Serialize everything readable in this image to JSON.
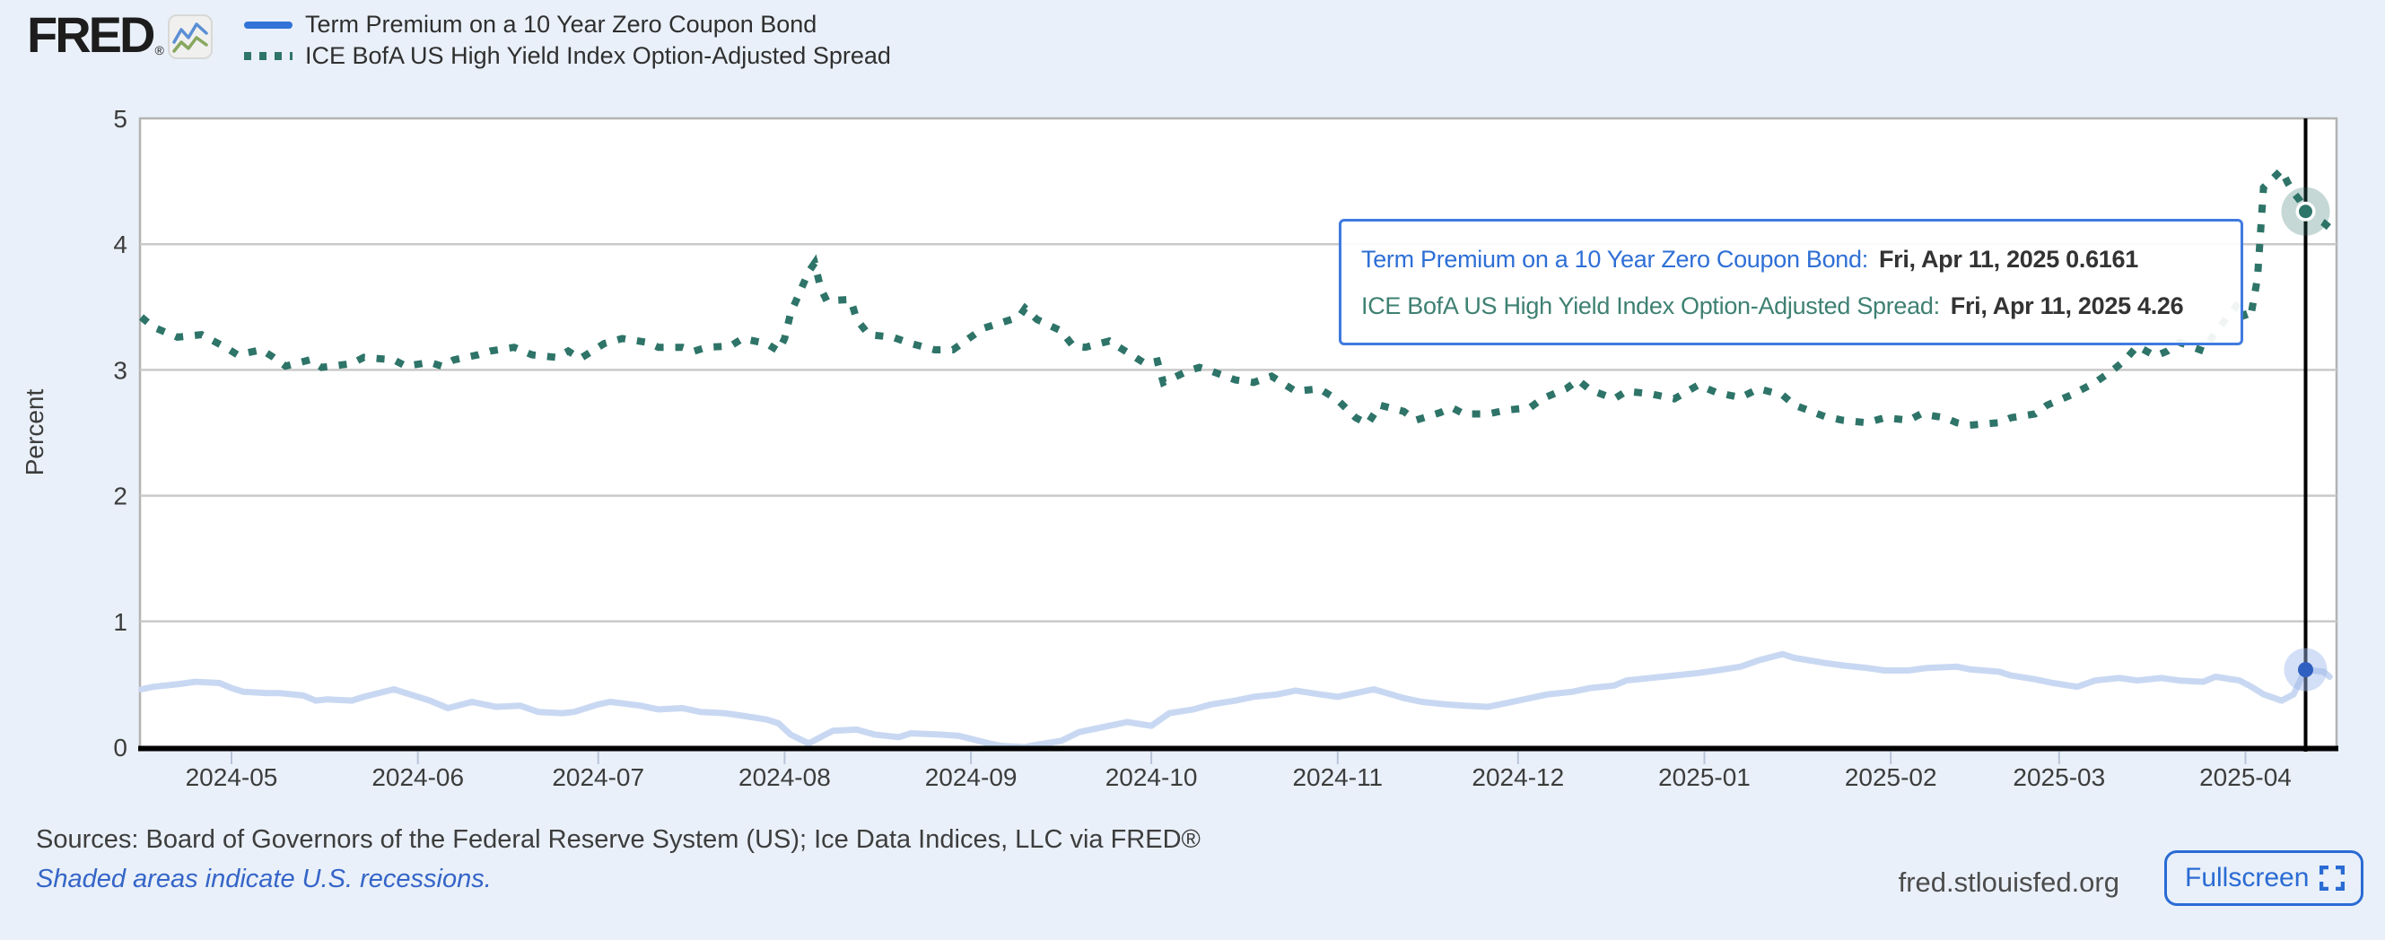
{
  "page": {
    "background": "#e9f0f9"
  },
  "header": {
    "logo_text": "FRED",
    "logo_reg": "®",
    "legend": [
      {
        "label": "Term Premium on a 10 Year Zero Coupon Bond",
        "color": "#3273d8",
        "style": "solid"
      },
      {
        "label": "ICE BofA US High Yield Index Option-Adjusted Spread",
        "color": "#2e7468",
        "style": "dotted"
      }
    ]
  },
  "tooltip": {
    "rows": [
      {
        "label": "Term Premium on a 10 Year Zero Coupon Bond:",
        "value": "Fri, Apr 11, 2025 0.6161"
      },
      {
        "label": "ICE BofA US High Yield Index Option-Adjusted Spread:",
        "value": "Fri, Apr 11, 2025 4.26"
      }
    ]
  },
  "footer": {
    "sources": "Sources: Board of Governors of the Federal Reserve System (US); Ice Data Indices, LLC via FRED®",
    "recession_note": "Shaded areas indicate U.S. recessions.",
    "watermark": "fred.stlouisfed.org",
    "fullscreen_label": "Fullscreen"
  },
  "colors": {
    "accent_blue": "#3273d8",
    "series_blue_faded": "#c9d8f2",
    "marker_blue": "#2f5fc0",
    "marker_blue_halo": "#9db9ea",
    "series_green": "#2e7468",
    "grid": "#c9c9c9",
    "plot_border": "#b3b3b3",
    "axis_black": "#000000",
    "tick": "#b8c4d9",
    "text_dark": "#3c3c3c"
  },
  "chart_data": {
    "type": "line",
    "title": "",
    "xlabel": "",
    "ylabel": "Percent",
    "ylim": [
      0,
      5
    ],
    "y_ticks": [
      0,
      1,
      2,
      3,
      4,
      5
    ],
    "grid": "horizontal",
    "legend_position": "top-left",
    "x_ticks": [
      {
        "label": "2024-05",
        "date": "2024-05-01"
      },
      {
        "label": "2024-06",
        "date": "2024-06-01"
      },
      {
        "label": "2024-07",
        "date": "2024-07-01"
      },
      {
        "label": "2024-08",
        "date": "2024-08-01"
      },
      {
        "label": "2024-09",
        "date": "2024-09-01"
      },
      {
        "label": "2024-10",
        "date": "2024-10-01"
      },
      {
        "label": "2024-11",
        "date": "2024-11-01"
      },
      {
        "label": "2024-12",
        "date": "2024-12-01"
      },
      {
        "label": "2025-01",
        "date": "2025-01-01"
      },
      {
        "label": "2025-02",
        "date": "2025-02-01"
      },
      {
        "label": "2025-03",
        "date": "2025-03-01"
      },
      {
        "label": "2025-04",
        "date": "2025-04-01"
      }
    ],
    "crosshair": {
      "date": "2025-04-11"
    },
    "series": [
      {
        "name": "Term Premium on a 10 Year Zero Coupon Bond",
        "style": "solid",
        "color": "#c9d8f2",
        "highlight": {
          "date": "2025-04-11",
          "value": 0.6161
        },
        "points": [
          [
            "2024-04-16",
            0.46
          ],
          [
            "2024-04-18",
            0.48
          ],
          [
            "2024-04-22",
            0.5
          ],
          [
            "2024-04-25",
            0.52
          ],
          [
            "2024-04-29",
            0.51
          ],
          [
            "2024-05-01",
            0.47
          ],
          [
            "2024-05-03",
            0.44
          ],
          [
            "2024-05-07",
            0.43
          ],
          [
            "2024-05-09",
            0.43
          ],
          [
            "2024-05-13",
            0.41
          ],
          [
            "2024-05-15",
            0.37
          ],
          [
            "2024-05-17",
            0.38
          ],
          [
            "2024-05-21",
            0.37
          ],
          [
            "2024-05-23",
            0.4
          ],
          [
            "2024-05-28",
            0.46
          ],
          [
            "2024-05-30",
            0.43
          ],
          [
            "2024-06-03",
            0.37
          ],
          [
            "2024-06-06",
            0.31
          ],
          [
            "2024-06-10",
            0.36
          ],
          [
            "2024-06-12",
            0.34
          ],
          [
            "2024-06-14",
            0.32
          ],
          [
            "2024-06-18",
            0.33
          ],
          [
            "2024-06-21",
            0.28
          ],
          [
            "2024-06-25",
            0.27
          ],
          [
            "2024-06-27",
            0.28
          ],
          [
            "2024-07-01",
            0.34
          ],
          [
            "2024-07-03",
            0.36
          ],
          [
            "2024-07-08",
            0.33
          ],
          [
            "2024-07-11",
            0.3
          ],
          [
            "2024-07-15",
            0.31
          ],
          [
            "2024-07-18",
            0.28
          ],
          [
            "2024-07-22",
            0.27
          ],
          [
            "2024-07-25",
            0.25
          ],
          [
            "2024-07-29",
            0.22
          ],
          [
            "2024-07-31",
            0.19
          ],
          [
            "2024-08-02",
            0.1
          ],
          [
            "2024-08-05",
            0.03
          ],
          [
            "2024-08-07",
            0.08
          ],
          [
            "2024-08-09",
            0.13
          ],
          [
            "2024-08-13",
            0.14
          ],
          [
            "2024-08-16",
            0.1
          ],
          [
            "2024-08-20",
            0.08
          ],
          [
            "2024-08-22",
            0.11
          ],
          [
            "2024-08-27",
            0.1
          ],
          [
            "2024-08-30",
            0.09
          ],
          [
            "2024-09-04",
            0.03
          ],
          [
            "2024-09-06",
            0.01
          ],
          [
            "2024-09-10",
            0.0
          ],
          [
            "2024-09-12",
            0.02
          ],
          [
            "2024-09-16",
            0.05
          ],
          [
            "2024-09-19",
            0.12
          ],
          [
            "2024-09-24",
            0.17
          ],
          [
            "2024-09-27",
            0.2
          ],
          [
            "2024-10-01",
            0.17
          ],
          [
            "2024-10-04",
            0.27
          ],
          [
            "2024-10-08",
            0.3
          ],
          [
            "2024-10-11",
            0.34
          ],
          [
            "2024-10-15",
            0.37
          ],
          [
            "2024-10-18",
            0.4
          ],
          [
            "2024-10-22",
            0.42
          ],
          [
            "2024-10-25",
            0.45
          ],
          [
            "2024-10-29",
            0.42
          ],
          [
            "2024-11-01",
            0.4
          ],
          [
            "2024-11-05",
            0.44
          ],
          [
            "2024-11-07",
            0.46
          ],
          [
            "2024-11-12",
            0.39
          ],
          [
            "2024-11-15",
            0.36
          ],
          [
            "2024-11-19",
            0.34
          ],
          [
            "2024-11-22",
            0.33
          ],
          [
            "2024-11-26",
            0.32
          ],
          [
            "2024-11-29",
            0.35
          ],
          [
            "2024-12-03",
            0.39
          ],
          [
            "2024-12-06",
            0.42
          ],
          [
            "2024-12-10",
            0.44
          ],
          [
            "2024-12-13",
            0.47
          ],
          [
            "2024-12-17",
            0.49
          ],
          [
            "2024-12-19",
            0.53
          ],
          [
            "2024-12-23",
            0.55
          ],
          [
            "2024-12-27",
            0.57
          ],
          [
            "2024-12-31",
            0.59
          ],
          [
            "2025-01-03",
            0.61
          ],
          [
            "2025-01-07",
            0.64
          ],
          [
            "2025-01-10",
            0.69
          ],
          [
            "2025-01-14",
            0.74
          ],
          [
            "2025-01-16",
            0.71
          ],
          [
            "2025-01-21",
            0.67
          ],
          [
            "2025-01-24",
            0.65
          ],
          [
            "2025-01-28",
            0.63
          ],
          [
            "2025-01-31",
            0.61
          ],
          [
            "2025-02-04",
            0.61
          ],
          [
            "2025-02-07",
            0.63
          ],
          [
            "2025-02-12",
            0.64
          ],
          [
            "2025-02-14",
            0.62
          ],
          [
            "2025-02-19",
            0.6
          ],
          [
            "2025-02-21",
            0.57
          ],
          [
            "2025-02-25",
            0.54
          ],
          [
            "2025-02-28",
            0.51
          ],
          [
            "2025-03-04",
            0.48
          ],
          [
            "2025-03-07",
            0.53
          ],
          [
            "2025-03-11",
            0.55
          ],
          [
            "2025-03-14",
            0.53
          ],
          [
            "2025-03-18",
            0.55
          ],
          [
            "2025-03-21",
            0.53
          ],
          [
            "2025-03-25",
            0.52
          ],
          [
            "2025-03-27",
            0.56
          ],
          [
            "2025-03-31",
            0.53
          ],
          [
            "2025-04-02",
            0.48
          ],
          [
            "2025-04-04",
            0.42
          ],
          [
            "2025-04-07",
            0.37
          ],
          [
            "2025-04-09",
            0.42
          ],
          [
            "2025-04-10",
            0.52
          ],
          [
            "2025-04-11",
            0.6161
          ],
          [
            "2025-04-14",
            0.6
          ],
          [
            "2025-04-15",
            0.56
          ]
        ]
      },
      {
        "name": "ICE BofA US High Yield Index Option-Adjusted Spread",
        "style": "dotted",
        "color": "#2e7468",
        "highlight": {
          "date": "2025-04-11",
          "value": 4.26
        },
        "points": [
          [
            "2024-04-16",
            3.42
          ],
          [
            "2024-04-18",
            3.34
          ],
          [
            "2024-04-22",
            3.26
          ],
          [
            "2024-04-24",
            3.27
          ],
          [
            "2024-04-26",
            3.28
          ],
          [
            "2024-04-30",
            3.18
          ],
          [
            "2024-05-02",
            3.12
          ],
          [
            "2024-05-06",
            3.16
          ],
          [
            "2024-05-08",
            3.1
          ],
          [
            "2024-05-10",
            3.03
          ],
          [
            "2024-05-14",
            3.08
          ],
          [
            "2024-05-16",
            3.02
          ],
          [
            "2024-05-21",
            3.05
          ],
          [
            "2024-05-23",
            3.1
          ],
          [
            "2024-05-28",
            3.08
          ],
          [
            "2024-05-30",
            3.03
          ],
          [
            "2024-06-03",
            3.06
          ],
          [
            "2024-06-05",
            3.03
          ],
          [
            "2024-06-07",
            3.08
          ],
          [
            "2024-06-11",
            3.12
          ],
          [
            "2024-06-13",
            3.15
          ],
          [
            "2024-06-17",
            3.18
          ],
          [
            "2024-06-20",
            3.12
          ],
          [
            "2024-06-24",
            3.1
          ],
          [
            "2024-06-26",
            3.15
          ],
          [
            "2024-06-28",
            3.09
          ],
          [
            "2024-07-02",
            3.21
          ],
          [
            "2024-07-05",
            3.25
          ],
          [
            "2024-07-09",
            3.22
          ],
          [
            "2024-07-11",
            3.18
          ],
          [
            "2024-07-15",
            3.18
          ],
          [
            "2024-07-17",
            3.15
          ],
          [
            "2024-07-19",
            3.18
          ],
          [
            "2024-07-23",
            3.19
          ],
          [
            "2024-07-25",
            3.25
          ],
          [
            "2024-07-29",
            3.21
          ],
          [
            "2024-07-31",
            3.15
          ],
          [
            "2024-08-01",
            3.25
          ],
          [
            "2024-08-02",
            3.45
          ],
          [
            "2024-08-05",
            3.78
          ],
          [
            "2024-08-06",
            3.85
          ],
          [
            "2024-08-07",
            3.65
          ],
          [
            "2024-08-08",
            3.55
          ],
          [
            "2024-08-12",
            3.56
          ],
          [
            "2024-08-13",
            3.4
          ],
          [
            "2024-08-15",
            3.28
          ],
          [
            "2024-08-19",
            3.26
          ],
          [
            "2024-08-22",
            3.21
          ],
          [
            "2024-08-26",
            3.16
          ],
          [
            "2024-08-29",
            3.16
          ],
          [
            "2024-09-03",
            3.33
          ],
          [
            "2024-09-05",
            3.36
          ],
          [
            "2024-09-09",
            3.42
          ],
          [
            "2024-09-10",
            3.49
          ],
          [
            "2024-09-12",
            3.4
          ],
          [
            "2024-09-16",
            3.31
          ],
          [
            "2024-09-18",
            3.19
          ],
          [
            "2024-09-20",
            3.18
          ],
          [
            "2024-09-24",
            3.23
          ],
          [
            "2024-09-26",
            3.17
          ],
          [
            "2024-09-30",
            3.05
          ],
          [
            "2024-10-02",
            3.07
          ],
          [
            "2024-10-03",
            2.9
          ],
          [
            "2024-10-07",
            2.99
          ],
          [
            "2024-10-09",
            3.02
          ],
          [
            "2024-10-11",
            2.99
          ],
          [
            "2024-10-15",
            2.92
          ],
          [
            "2024-10-18",
            2.9
          ],
          [
            "2024-10-21",
            2.95
          ],
          [
            "2024-10-25",
            2.83
          ],
          [
            "2024-10-29",
            2.85
          ],
          [
            "2024-11-01",
            2.76
          ],
          [
            "2024-11-04",
            2.62
          ],
          [
            "2024-11-06",
            2.57
          ],
          [
            "2024-11-08",
            2.72
          ],
          [
            "2024-11-12",
            2.67
          ],
          [
            "2024-11-14",
            2.6
          ],
          [
            "2024-11-18",
            2.66
          ],
          [
            "2024-11-20",
            2.7
          ],
          [
            "2024-11-22",
            2.65
          ],
          [
            "2024-11-26",
            2.65
          ],
          [
            "2024-11-29",
            2.68
          ],
          [
            "2024-12-03",
            2.7
          ],
          [
            "2024-12-05",
            2.77
          ],
          [
            "2024-12-09",
            2.85
          ],
          [
            "2024-12-11",
            2.92
          ],
          [
            "2024-12-13",
            2.84
          ],
          [
            "2024-12-17",
            2.77
          ],
          [
            "2024-12-19",
            2.83
          ],
          [
            "2024-12-23",
            2.81
          ],
          [
            "2024-12-27",
            2.77
          ],
          [
            "2024-12-31",
            2.88
          ],
          [
            "2025-01-03",
            2.82
          ],
          [
            "2025-01-07",
            2.78
          ],
          [
            "2025-01-10",
            2.85
          ],
          [
            "2025-01-14",
            2.8
          ],
          [
            "2025-01-16",
            2.72
          ],
          [
            "2025-01-21",
            2.63
          ],
          [
            "2025-01-24",
            2.6
          ],
          [
            "2025-01-28",
            2.58
          ],
          [
            "2025-01-31",
            2.62
          ],
          [
            "2025-02-04",
            2.6
          ],
          [
            "2025-02-06",
            2.65
          ],
          [
            "2025-02-10",
            2.62
          ],
          [
            "2025-02-12",
            2.58
          ],
          [
            "2025-02-14",
            2.56
          ],
          [
            "2025-02-19",
            2.58
          ],
          [
            "2025-02-21",
            2.62
          ],
          [
            "2025-02-25",
            2.65
          ],
          [
            "2025-02-27",
            2.72
          ],
          [
            "2025-03-03",
            2.8
          ],
          [
            "2025-03-05",
            2.85
          ],
          [
            "2025-03-07",
            2.9
          ],
          [
            "2025-03-10",
            3.0
          ],
          [
            "2025-03-12",
            3.08
          ],
          [
            "2025-03-14",
            3.19
          ],
          [
            "2025-03-17",
            3.11
          ],
          [
            "2025-03-19",
            3.15
          ],
          [
            "2025-03-21",
            3.22
          ],
          [
            "2025-03-25",
            3.15
          ],
          [
            "2025-03-27",
            3.3
          ],
          [
            "2025-03-31",
            3.54
          ],
          [
            "2025-04-01",
            3.4
          ],
          [
            "2025-04-02",
            3.46
          ],
          [
            "2025-04-03",
            3.73
          ],
          [
            "2025-04-04",
            4.45
          ],
          [
            "2025-04-07",
            4.59
          ],
          [
            "2025-04-08",
            4.49
          ],
          [
            "2025-04-09",
            4.41
          ],
          [
            "2025-04-10",
            4.35
          ],
          [
            "2025-04-11",
            4.26
          ],
          [
            "2025-04-14",
            4.17
          ],
          [
            "2025-04-15",
            4.13
          ]
        ]
      }
    ]
  }
}
